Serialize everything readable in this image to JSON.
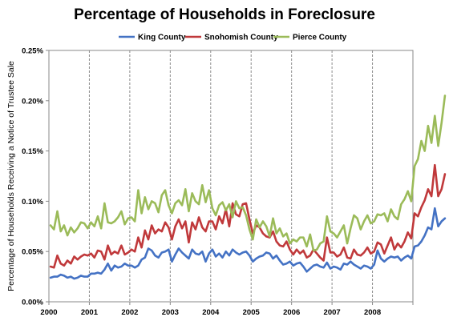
{
  "chart_data": {
    "type": "line",
    "title": "Percentage of Households in Foreclosure",
    "xlabel": "",
    "ylabel": "Percentage of Households Receiving a Notice of Trustee Sale",
    "x_start_year": 2000,
    "x_end_year": 2009,
    "x_tick_labels": [
      "2000",
      "2001",
      "2002",
      "2003",
      "2004",
      "2005",
      "2006",
      "2007",
      "2008"
    ],
    "y_tick_labels": [
      "0.00%",
      "0.05%",
      "0.10%",
      "0.15%",
      "0.20%",
      "0.25%"
    ],
    "ylim": [
      0,
      0.25
    ],
    "x_grid": true,
    "x_grid_style": "dashed",
    "legend_position": "top",
    "series": [
      {
        "name": "King County",
        "color": "#4472c4",
        "values": [
          0.024,
          0.025,
          0.025,
          0.027,
          0.026,
          0.024,
          0.025,
          0.023,
          0.024,
          0.026,
          0.025,
          0.025,
          0.028,
          0.028,
          0.029,
          0.028,
          0.032,
          0.038,
          0.031,
          0.036,
          0.034,
          0.035,
          0.038,
          0.036,
          0.036,
          0.034,
          0.036,
          0.042,
          0.044,
          0.053,
          0.051,
          0.046,
          0.044,
          0.049,
          0.05,
          0.052,
          0.04,
          0.047,
          0.053,
          0.049,
          0.046,
          0.043,
          0.052,
          0.048,
          0.047,
          0.05,
          0.04,
          0.048,
          0.052,
          0.045,
          0.048,
          0.044,
          0.05,
          0.046,
          0.052,
          0.049,
          0.047,
          0.049,
          0.05,
          0.046,
          0.04,
          0.043,
          0.045,
          0.046,
          0.049,
          0.048,
          0.043,
          0.046,
          0.041,
          0.037,
          0.038,
          0.04,
          0.036,
          0.038,
          0.039,
          0.035,
          0.03,
          0.033,
          0.036,
          0.037,
          0.035,
          0.034,
          0.039,
          0.033,
          0.035,
          0.034,
          0.032,
          0.038,
          0.037,
          0.04,
          0.037,
          0.035,
          0.033,
          0.036,
          0.035,
          0.033,
          0.037,
          0.051,
          0.043,
          0.04,
          0.043,
          0.045,
          0.044,
          0.045,
          0.041,
          0.044,
          0.046,
          0.043,
          0.055,
          0.056,
          0.06,
          0.066,
          0.074,
          0.072,
          0.093,
          0.075,
          0.08,
          0.083
        ]
      },
      {
        "name": "Snohomish County",
        "color": "#c0393b",
        "values": [
          0.035,
          0.034,
          0.046,
          0.038,
          0.036,
          0.041,
          0.038,
          0.045,
          0.042,
          0.045,
          0.047,
          0.046,
          0.048,
          0.044,
          0.051,
          0.05,
          0.042,
          0.056,
          0.047,
          0.05,
          0.048,
          0.056,
          0.047,
          0.049,
          0.052,
          0.05,
          0.064,
          0.054,
          0.071,
          0.062,
          0.076,
          0.068,
          0.072,
          0.07,
          0.079,
          0.074,
          0.062,
          0.075,
          0.082,
          0.073,
          0.08,
          0.059,
          0.079,
          0.072,
          0.084,
          0.074,
          0.07,
          0.08,
          0.08,
          0.072,
          0.085,
          0.078,
          0.092,
          0.075,
          0.098,
          0.087,
          0.085,
          0.097,
          0.098,
          0.082,
          0.068,
          0.076,
          0.074,
          0.068,
          0.065,
          0.064,
          0.07,
          0.06,
          0.056,
          0.055,
          0.06,
          0.052,
          0.047,
          0.052,
          0.048,
          0.051,
          0.044,
          0.046,
          0.052,
          0.048,
          0.044,
          0.041,
          0.064,
          0.049,
          0.049,
          0.045,
          0.047,
          0.054,
          0.044,
          0.043,
          0.052,
          0.047,
          0.046,
          0.049,
          0.054,
          0.048,
          0.05,
          0.059,
          0.057,
          0.048,
          0.056,
          0.064,
          0.052,
          0.058,
          0.054,
          0.06,
          0.069,
          0.063,
          0.088,
          0.085,
          0.094,
          0.101,
          0.112,
          0.105,
          0.136,
          0.105,
          0.112,
          0.127
        ]
      },
      {
        "name": "Pierce County",
        "color": "#9bbb59",
        "values": [
          0.076,
          0.072,
          0.09,
          0.07,
          0.076,
          0.066,
          0.074,
          0.069,
          0.073,
          0.079,
          0.078,
          0.073,
          0.079,
          0.075,
          0.085,
          0.073,
          0.098,
          0.079,
          0.078,
          0.08,
          0.084,
          0.09,
          0.077,
          0.083,
          0.084,
          0.08,
          0.111,
          0.088,
          0.104,
          0.092,
          0.1,
          0.098,
          0.089,
          0.106,
          0.111,
          0.096,
          0.088,
          0.098,
          0.101,
          0.096,
          0.112,
          0.09,
          0.108,
          0.1,
          0.097,
          0.116,
          0.099,
          0.111,
          0.093,
          0.086,
          0.096,
          0.099,
          0.091,
          0.097,
          0.084,
          0.1,
          0.093,
          0.094,
          0.086,
          0.072,
          0.062,
          0.082,
          0.074,
          0.08,
          0.075,
          0.065,
          0.083,
          0.068,
          0.073,
          0.065,
          0.068,
          0.058,
          0.062,
          0.06,
          0.064,
          0.064,
          0.055,
          0.067,
          0.051,
          0.052,
          0.058,
          0.06,
          0.085,
          0.07,
          0.068,
          0.064,
          0.07,
          0.076,
          0.058,
          0.073,
          0.086,
          0.083,
          0.072,
          0.08,
          0.086,
          0.078,
          0.08,
          0.087,
          0.086,
          0.088,
          0.08,
          0.092,
          0.085,
          0.082,
          0.097,
          0.102,
          0.11,
          0.1,
          0.135,
          0.142,
          0.16,
          0.15,
          0.175,
          0.158,
          0.185,
          0.155,
          0.178,
          0.205
        ]
      }
    ]
  }
}
